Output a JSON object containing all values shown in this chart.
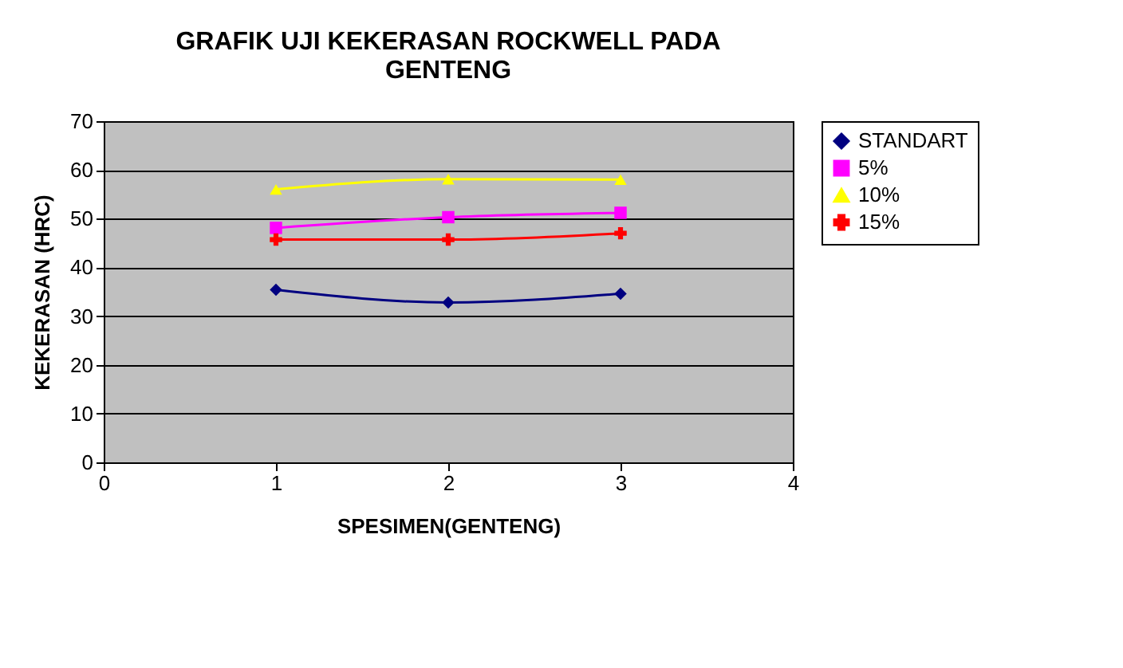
{
  "chart_data": {
    "type": "line",
    "title": "GRAFIK UJI KEKERASAN ROCKWELL PADA GENTENG",
    "xlabel": "SPESIMEN(GENTENG)",
    "ylabel": "KEKERASAN (HRC)",
    "x": [
      1,
      2,
      3
    ],
    "series": [
      {
        "name": "STANDART",
        "color": "#000080",
        "marker": "diamond",
        "values": [
          35.4,
          32.8,
          34.6
        ]
      },
      {
        "name": "5%",
        "color": "#ff00ff",
        "marker": "square",
        "values": [
          48.1,
          50.3,
          51.2
        ]
      },
      {
        "name": "10%",
        "color": "#ffff00",
        "marker": "triangle",
        "values": [
          56,
          58.1,
          58
        ]
      },
      {
        "name": "15%",
        "color": "#ff0000",
        "marker": "cross",
        "values": [
          45.7,
          45.7,
          47
        ]
      }
    ],
    "xlim": [
      0,
      4
    ],
    "xticks": [
      0,
      1,
      2,
      3,
      4
    ],
    "ylim": [
      0,
      70
    ],
    "yticks": [
      0,
      10,
      20,
      30,
      40,
      50,
      60,
      70
    ],
    "grid": "y",
    "legend": "right",
    "line_style": "solid"
  }
}
